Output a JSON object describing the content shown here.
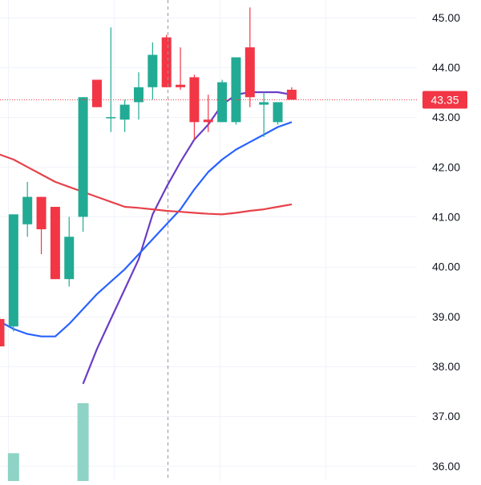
{
  "chart_data": {
    "type": "candlestick",
    "y_axis": {
      "position": "right",
      "range": [
        35.7,
        45.35
      ],
      "ticks": [
        "36.00",
        "37.00",
        "38.00",
        "39.00",
        "40.00",
        "41.00",
        "42.00",
        "43.00",
        "44.00",
        "45.00"
      ]
    },
    "grid": true,
    "last_price": {
      "value": 43.35,
      "label": "43.35"
    },
    "colors": {
      "up": "#22ab94",
      "down": "#f23645",
      "volume": "#8fd3c6",
      "grid": "#f0f3fa",
      "axis_text": "#131722",
      "crosshair": "#9598a1",
      "last_price": "#f23645",
      "ma_fast": "#6a3dc6",
      "ma_mid": "#2962ff",
      "ma_slow": "#e8414a"
    },
    "candles": [
      {
        "o": 38.95,
        "h": 39.0,
        "l": 38.4,
        "c": 38.4
      },
      {
        "o": 38.8,
        "h": 41.05,
        "l": 38.7,
        "c": 41.05
      },
      {
        "o": 40.85,
        "h": 41.7,
        "l": 40.6,
        "c": 41.4
      },
      {
        "o": 41.4,
        "h": 41.4,
        "l": 40.25,
        "c": 40.75
      },
      {
        "o": 41.2,
        "h": 41.2,
        "l": 39.75,
        "c": 39.75
      },
      {
        "o": 39.75,
        "h": 41.0,
        "l": 39.6,
        "c": 40.6
      },
      {
        "o": 41.0,
        "h": 43.4,
        "l": 40.7,
        "c": 43.4
      },
      {
        "o": 43.75,
        "h": 43.75,
        "l": 43.2,
        "c": 43.2
      },
      {
        "o": 43.0,
        "h": 44.8,
        "l": 42.7,
        "c": 43.0
      },
      {
        "o": 42.95,
        "h": 43.35,
        "l": 42.7,
        "c": 43.25
      },
      {
        "o": 43.3,
        "h": 43.9,
        "l": 42.95,
        "c": 43.6
      },
      {
        "o": 43.6,
        "h": 44.5,
        "l": 43.35,
        "c": 44.25
      },
      {
        "o": 44.6,
        "h": 44.65,
        "l": 43.6,
        "c": 43.6
      },
      {
        "o": 43.65,
        "h": 44.4,
        "l": 43.55,
        "c": 43.6
      },
      {
        "o": 43.8,
        "h": 43.85,
        "l": 42.55,
        "c": 42.9
      },
      {
        "o": 42.95,
        "h": 43.45,
        "l": 42.7,
        "c": 42.9
      },
      {
        "o": 42.9,
        "h": 43.75,
        "l": 42.9,
        "c": 43.7
      },
      {
        "o": 42.9,
        "h": 44.2,
        "l": 42.85,
        "c": 44.2
      },
      {
        "o": 44.4,
        "h": 45.2,
        "l": 43.2,
        "c": 43.4
      },
      {
        "o": 43.25,
        "h": 43.5,
        "l": 42.6,
        "c": 43.3
      },
      {
        "o": 42.9,
        "h": 43.3,
        "l": 42.85,
        "c": 43.3
      },
      {
        "o": 43.55,
        "h": 43.6,
        "l": 43.35,
        "c": 43.35
      }
    ],
    "volumes": [
      0,
      100,
      0,
      0,
      0,
      0,
      280,
      0,
      0,
      0,
      0,
      0,
      0,
      0,
      0,
      0,
      0,
      0,
      0,
      0,
      0,
      0
    ],
    "moving_averages": [
      {
        "color": "#6a3dc6",
        "values": [
          37.65,
          38.35,
          38.95,
          39.55,
          40.15,
          41.05,
          41.6,
          42.1,
          42.55,
          42.85,
          43.25,
          43.45,
          43.5,
          43.5,
          43.5,
          43.45
        ]
      },
      {
        "color": "#2962ff",
        "values": [
          38.9,
          38.75,
          38.65,
          38.6,
          38.6,
          38.85,
          39.15,
          39.45,
          39.7,
          39.95,
          40.25,
          40.55,
          40.85,
          41.15,
          41.55,
          41.9,
          42.15,
          42.35,
          42.5,
          42.65,
          42.8,
          42.9
        ]
      },
      {
        "color": "#e8414a",
        "values": [
          42.25,
          42.15,
          42.0,
          41.85,
          41.7,
          41.6,
          41.5,
          41.4,
          41.3,
          41.2,
          41.18,
          41.15,
          41.12,
          41.1,
          41.08,
          41.06,
          41.05,
          41.08,
          41.12,
          41.15,
          41.2,
          41.25
        ]
      }
    ]
  }
}
